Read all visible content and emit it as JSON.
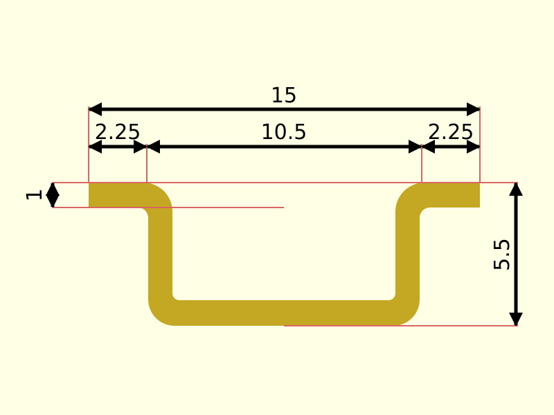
{
  "colors": {
    "background": "#ffffe5",
    "profile": "#c4a824",
    "extension_line": "#d96565",
    "dimension_line": "#000000"
  },
  "dimensions": {
    "overall_width": "15",
    "left_flange": "2.25",
    "inner_width": "10.5",
    "right_flange": "2.25",
    "thickness": "1",
    "depth": "5.5"
  }
}
